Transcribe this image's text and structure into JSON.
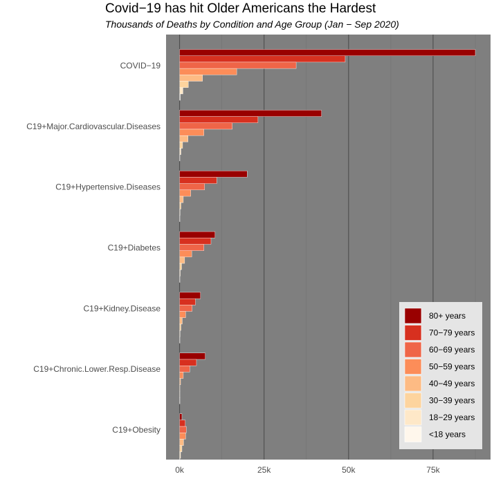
{
  "chart_data": {
    "type": "bar",
    "orientation": "horizontal",
    "title": "Covid−19 has hit Older Americans the Hardest",
    "subtitle": "Thousands of Deaths by Condition and Age Group (Jan − Sep 2020)",
    "xlabel": "",
    "ylabel": "",
    "xlim": [
      -4000,
      92000
    ],
    "x_ticks": [
      0,
      25000,
      50000,
      75000
    ],
    "x_tick_labels": [
      "0k",
      "25k",
      "50k",
      "75k"
    ],
    "grid": true,
    "legend_position": "bottom-right",
    "categories": [
      "COVID−19",
      "C19+Major.Cardiovascular.Diseases",
      "C19+Hypertensive.Diseases",
      "C19+Diabetes",
      "C19+Kidney.Disease",
      "C19+Chronic.Lower.Resp.Disease",
      "C19+Obesity"
    ],
    "series": [
      {
        "name": "80+ years",
        "color": "#990000",
        "values": [
          87500,
          42000,
          20000,
          10500,
          6200,
          7600,
          700
        ]
      },
      {
        "name": "70−79 years",
        "color": "#d7301f",
        "values": [
          49000,
          23200,
          11000,
          9300,
          4700,
          5000,
          1700
        ]
      },
      {
        "name": "60−69 years",
        "color": "#ef6548",
        "values": [
          34500,
          15600,
          7400,
          7200,
          3700,
          3000,
          2000
        ]
      },
      {
        "name": "50−59 years",
        "color": "#fc8d59",
        "values": [
          16900,
          7200,
          3300,
          3600,
          1800,
          1100,
          1800
        ]
      },
      {
        "name": "40−49 years",
        "color": "#fdbb84",
        "values": [
          6800,
          2500,
          1100,
          1500,
          800,
          300,
          1200
        ]
      },
      {
        "name": "30−39 years",
        "color": "#fdd49e",
        "values": [
          2600,
          900,
          400,
          600,
          400,
          100,
          700
        ]
      },
      {
        "name": "18−29 years",
        "color": "#fee8c8",
        "values": [
          1000,
          400,
          150,
          200,
          150,
          50,
          300
        ]
      },
      {
        "name": "<18 years",
        "color": "#fff7ec",
        "values": [
          200,
          80,
          40,
          50,
          40,
          30,
          80
        ]
      }
    ]
  },
  "colors": {
    "panel_background": "#7f7f7f",
    "grid_major": "#4d4d4d",
    "grid_minor": "#737373",
    "legend_background": "#e5e5e5"
  }
}
